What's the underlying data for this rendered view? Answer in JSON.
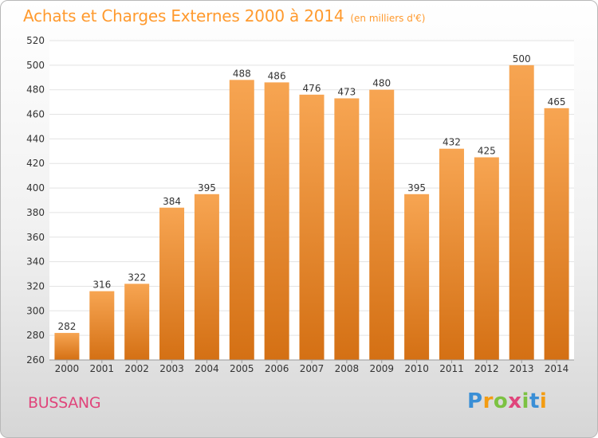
{
  "header": {
    "title": "Achats et Charges Externes 2000 à 2014",
    "subtitle": "(en milliers d'€)"
  },
  "footer": {
    "commune": "BUSSANG",
    "logo_letters": [
      "P",
      "r",
      "o",
      "x",
      "i",
      "t",
      "i"
    ],
    "logo_colors": [
      "#3a8fd6",
      "#f39c12",
      "#7cc242",
      "#e0457b",
      "#7cc242",
      "#3a8fd6",
      "#f39c12"
    ]
  },
  "colors": {
    "bar_light": "#f7a552",
    "bar_dark": "#d47014",
    "grid": "#e3e3e3",
    "axis_text": "#333333",
    "plot_bg": "#ffffff",
    "title": "#ff9a2e",
    "commune": "#e0457b"
  },
  "chart_data": {
    "type": "bar",
    "categories": [
      "2000",
      "2001",
      "2002",
      "2003",
      "2004",
      "2005",
      "2006",
      "2007",
      "2008",
      "2009",
      "2010",
      "2011",
      "2012",
      "2013",
      "2014"
    ],
    "values": [
      282,
      316,
      322,
      384,
      395,
      488,
      486,
      476,
      473,
      480,
      395,
      432,
      425,
      500,
      465
    ],
    "value_labels": [
      "282",
      "316",
      "322",
      "384",
      "395",
      "488",
      "486",
      "476",
      "473",
      "480",
      "395",
      "432",
      "425",
      "500",
      "465"
    ],
    "ylim": [
      260,
      520
    ],
    "yticks": [
      "260",
      "280",
      "300",
      "320",
      "340",
      "360",
      "380",
      "400",
      "420",
      "440",
      "460",
      "480",
      "500",
      "520"
    ],
    "grid": true,
    "legend": false
  }
}
